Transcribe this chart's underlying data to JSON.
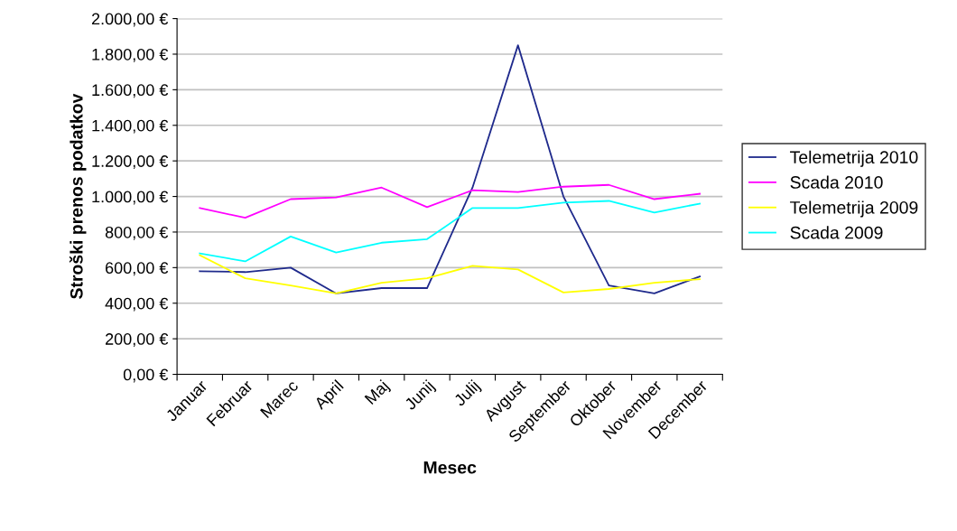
{
  "chart_data": {
    "type": "line",
    "xlabel": "Mesec",
    "ylabel": "Stroški prenos podatkov",
    "categories": [
      "Januar",
      "Februar",
      "Marec",
      "April",
      "Maj",
      "Junij",
      "Julij",
      "Avgust",
      "September",
      "Oktober",
      "November",
      "December"
    ],
    "series": [
      {
        "name": "Telemetrija 2010",
        "color": "#1f2a8c",
        "values": [
          580,
          575,
          600,
          455,
          485,
          485,
          1050,
          1850,
          1000,
          500,
          455,
          550
        ]
      },
      {
        "name": "Scada 2010",
        "color": "#ff00ff",
        "values": [
          935,
          880,
          985,
          995,
          1050,
          940,
          1035,
          1025,
          1055,
          1065,
          985,
          1015
        ]
      },
      {
        "name": "Telemetrija 2009",
        "color": "#ffff00",
        "values": [
          670,
          540,
          500,
          455,
          515,
          540,
          610,
          590,
          460,
          480,
          515,
          535
        ]
      },
      {
        "name": "Scada 2009",
        "color": "#00ffff",
        "values": [
          680,
          635,
          775,
          685,
          740,
          760,
          935,
          935,
          965,
          975,
          910,
          960
        ]
      }
    ],
    "ylim": [
      0,
      2000
    ],
    "yticks": [
      {
        "value": 0,
        "label": "0,00 €"
      },
      {
        "value": 200,
        "label": "200,00 €"
      },
      {
        "value": 400,
        "label": "400,00 €"
      },
      {
        "value": 600,
        "label": "600,00 €"
      },
      {
        "value": 800,
        "label": "800,00 €"
      },
      {
        "value": 1000,
        "label": "1.000,00 €"
      },
      {
        "value": 1200,
        "label": "1.200,00 €"
      },
      {
        "value": 1400,
        "label": "1.400,00 €"
      },
      {
        "value": 1600,
        "label": "1.600,00 €"
      },
      {
        "value": 1800,
        "label": "1.800,00 €"
      },
      {
        "value": 2000,
        "label": "2.000,00 €"
      }
    ],
    "grid": "y",
    "legend": "right",
    "marker": "none",
    "line_style": "solid"
  }
}
